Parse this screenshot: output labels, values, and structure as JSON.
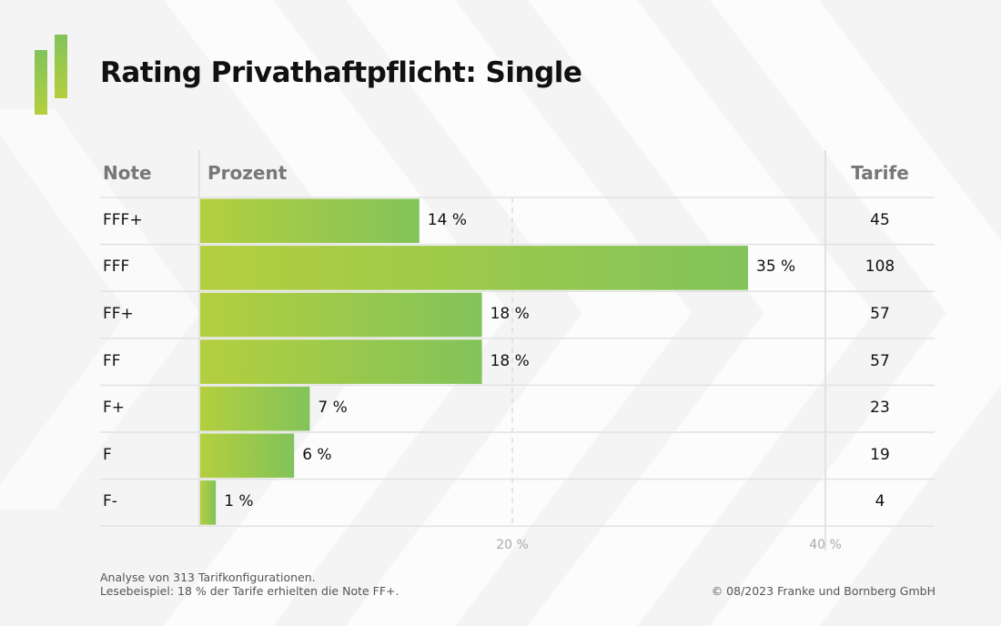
{
  "title": "Rating Privathaftpflicht: Single",
  "headers": {
    "note": "Note",
    "percent": "Prozent",
    "tariffs": "Tarife"
  },
  "colors": {
    "bar_start": "#b4cf3e",
    "bar_end": "#82c35a",
    "grid": "#e2e2e2"
  },
  "chart_data": {
    "type": "bar",
    "orientation": "horizontal",
    "categories": [
      "FFF+",
      "FFF",
      "FF+",
      "FF",
      "F+",
      "F",
      "F-"
    ],
    "values": [
      14,
      35,
      18,
      18,
      7,
      6,
      1
    ],
    "value_labels": [
      "14 %",
      "35 %",
      "18 %",
      "18 %",
      "7 %",
      "6 %",
      "1 %"
    ],
    "tariffs": [
      "45",
      "108",
      "57",
      "57",
      "23",
      "19",
      "4"
    ],
    "xlim": [
      0,
      40
    ],
    "xticks": [
      {
        "value": 20,
        "label": "20 %"
      },
      {
        "value": 40,
        "label": "40 %"
      }
    ],
    "grid": "dashed vertical at 20 %"
  },
  "footer": {
    "line1": "Analyse von 313 Tarifkonfigurationen.",
    "line2": "Lesebeispiel: 18 % der Tarife erhielten die Note FF+.",
    "copyright": "© 08/2023 Franke und Bornberg GmbH"
  }
}
